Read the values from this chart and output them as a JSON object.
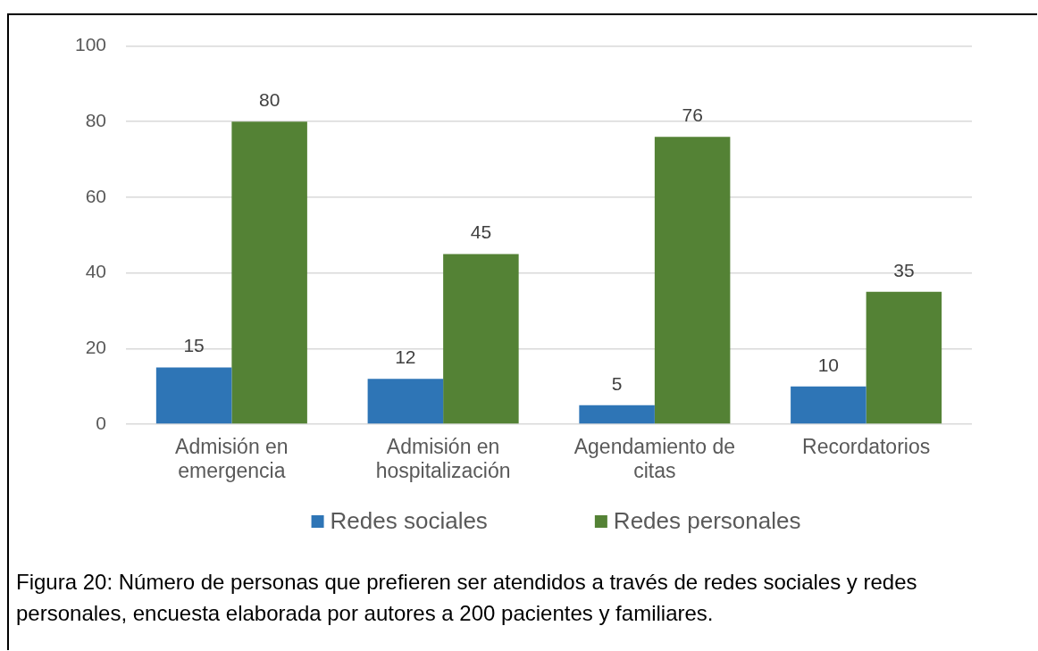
{
  "chart_data": {
    "type": "bar",
    "categories": [
      "Admisión en emergencia",
      "Admisión en hospitalización",
      "Agendamiento de citas",
      "Recordatorios"
    ],
    "series": [
      {
        "name": "Redes sociales",
        "color": "#2e75b6",
        "values": [
          15,
          12,
          5,
          10
        ]
      },
      {
        "name": "Redes personales",
        "color": "#548235",
        "values": [
          80,
          45,
          76,
          35
        ]
      }
    ],
    "ylim": [
      0,
      100
    ],
    "yticks": [
      0,
      20,
      40,
      60,
      80,
      100
    ],
    "grid": "y",
    "legend": "bottom",
    "data_labels": true,
    "annotations": [
      "Figura 20: Número de personas que prefieren ser atendidos a través de redes sociales y redes personales, encuesta elaborada por autores a 200 pacientes y familiares."
    ]
  }
}
